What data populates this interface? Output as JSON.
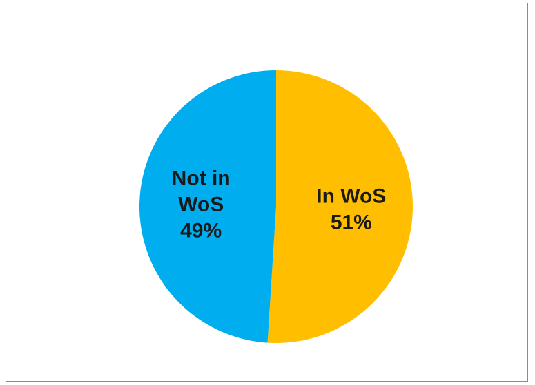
{
  "chart_data": {
    "type": "pie",
    "title": "",
    "slices": [
      {
        "label_lines": [
          "In WoS",
          "51%"
        ],
        "value": 51,
        "color": "#FFBF00"
      },
      {
        "label_lines": [
          "Not in",
          "WoS",
          "49%"
        ],
        "value": 49,
        "color": "#00AEEF"
      }
    ],
    "start": "12 o'clock",
    "direction": "clockwise",
    "legend": "none",
    "data_labels": "inside"
  }
}
